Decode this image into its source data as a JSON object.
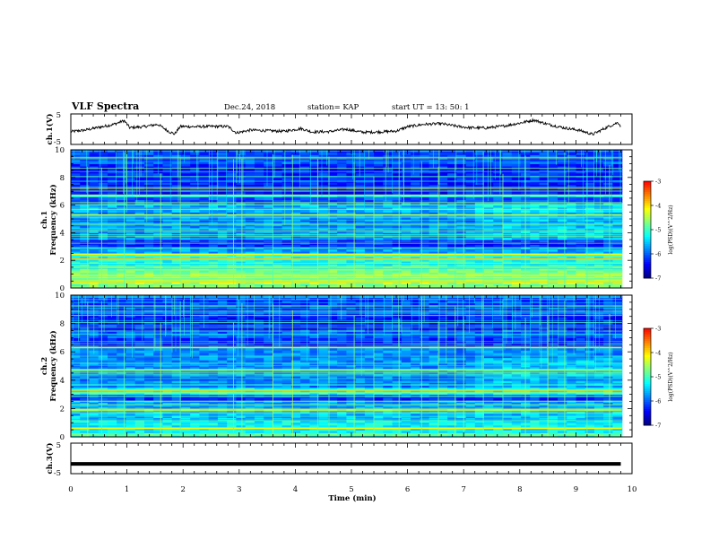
{
  "header": {
    "title": "VLF Spectra",
    "date": "Dec.24, 2018",
    "station": "station= KAP",
    "start": "start  UT =   13: 50: 1"
  },
  "colormap": [
    "#00007f",
    "#0000ff",
    "#0080ff",
    "#00ffff",
    "#80ff80",
    "#ffff00",
    "#ff8000",
    "#ff0000",
    "#ffffff"
  ],
  "chart_data": [
    {
      "type": "line",
      "panel": "ch1-waveform",
      "ylabel": "ch.1(V)",
      "ylim": [
        -5,
        5
      ],
      "yticks": [
        "5",
        "-5"
      ],
      "xlim": [
        0,
        10
      ],
      "x": [
        0,
        0.25,
        0.5,
        0.75,
        0.95,
        1.05,
        1.3,
        1.55,
        1.75,
        1.85,
        1.95,
        2.2,
        2.5,
        2.8,
        2.95,
        3.2,
        3.5,
        3.8,
        4.1,
        4.3,
        4.6,
        4.9,
        5.2,
        5.5,
        5.8,
        6.0,
        6.3,
        6.6,
        6.9,
        7.1,
        7.4,
        7.7,
        8.0,
        8.25,
        8.5,
        8.8,
        9.05,
        9.3,
        9.55,
        9.75,
        9.8
      ],
      "y": [
        -0.8,
        -0.3,
        0.6,
        1.5,
        2.8,
        0.5,
        0.8,
        1.6,
        -0.8,
        -1.6,
        0.9,
        0.8,
        0.9,
        0.9,
        -1.2,
        -0.3,
        -0.5,
        -0.7,
        0.2,
        -0.9,
        -0.8,
        0.0,
        -1.0,
        -0.9,
        -0.6,
        0.8,
        1.6,
        1.8,
        0.9,
        0.5,
        0.4,
        1.0,
        2.0,
        3.0,
        1.6,
        0.4,
        -0.3,
        -1.7,
        0.6,
        2.2,
        1.0
      ]
    },
    {
      "type": "heatmap",
      "panel": "ch1-spectrogram",
      "ylabel": "ch.1\nFrequency  (kHz)",
      "xlim": [
        0,
        10
      ],
      "ylim": [
        0,
        10
      ],
      "yticks": [
        "0",
        "2",
        "4",
        "6",
        "8",
        "10"
      ],
      "colorbar": {
        "label": "log(PSD)(V^2/Hz)",
        "range": [
          -7,
          -3
        ],
        "ticks": [
          "-3",
          "-4",
          "-5",
          "-6",
          "-7"
        ]
      },
      "bands": [
        {
          "fmin": 0.0,
          "fmax": 0.3,
          "level": 0.55
        },
        {
          "fmin": 0.3,
          "fmax": 1.0,
          "level": 0.62
        },
        {
          "fmin": 1.0,
          "fmax": 1.6,
          "level": 0.55
        },
        {
          "fmin": 1.6,
          "fmax": 2.3,
          "level": 0.45
        },
        {
          "fmin": 2.3,
          "fmax": 2.5,
          "level": 0.5
        },
        {
          "fmin": 2.5,
          "fmax": 3.0,
          "level": 0.32
        },
        {
          "fmin": 3.0,
          "fmax": 3.5,
          "level": 0.18
        },
        {
          "fmin": 3.5,
          "fmax": 4.5,
          "level": 0.3
        },
        {
          "fmin": 4.5,
          "fmax": 5.5,
          "level": 0.28
        },
        {
          "fmin": 5.5,
          "fmax": 6.2,
          "level": 0.34
        },
        {
          "fmin": 6.2,
          "fmax": 6.6,
          "level": 0.24
        },
        {
          "fmin": 6.6,
          "fmax": 6.8,
          "level": 0.42
        },
        {
          "fmin": 6.8,
          "fmax": 7.5,
          "level": 0.16
        },
        {
          "fmin": 7.5,
          "fmax": 9.0,
          "level": 0.18
        },
        {
          "fmin": 9.0,
          "fmax": 10.0,
          "level": 0.22
        }
      ],
      "tones": [
        {
          "f": 0.45,
          "level": 0.75
        },
        {
          "f": 0.9,
          "level": 0.7
        },
        {
          "f": 2.1,
          "level": 0.78
        },
        {
          "f": 2.45,
          "level": 0.72
        },
        {
          "f": 5.3,
          "level": 0.62
        },
        {
          "f": 6.7,
          "level": 0.6
        }
      ],
      "spikes": [
        0.3,
        0.55,
        0.95,
        1.6,
        1.95,
        2.9,
        3.05,
        3.6,
        3.95,
        4.4,
        4.6,
        5.05,
        5.4,
        5.85,
        6.25,
        6.55,
        6.85,
        7.0,
        7.35,
        7.7,
        8.1,
        8.5,
        8.8,
        9.2,
        9.6
      ]
    },
    {
      "type": "heatmap",
      "panel": "ch2-spectrogram",
      "ylabel": "ch.2\nFrequency  (kHz)",
      "xlim": [
        0,
        10
      ],
      "ylim": [
        0,
        10
      ],
      "yticks": [
        "0",
        "2",
        "4",
        "6",
        "8",
        "10"
      ],
      "colorbar": {
        "label": "log(PSD)(V^2/Hz)",
        "range": [
          -7,
          -3
        ],
        "ticks": [
          "-3",
          "-4",
          "-5",
          "-6",
          "-7"
        ]
      },
      "bands": [
        {
          "fmin": 0.0,
          "fmax": 0.3,
          "level": 0.5
        },
        {
          "fmin": 0.3,
          "fmax": 1.2,
          "level": 0.42
        },
        {
          "fmin": 1.2,
          "fmax": 2.0,
          "level": 0.36
        },
        {
          "fmin": 2.0,
          "fmax": 2.6,
          "level": 0.32
        },
        {
          "fmin": 2.6,
          "fmax": 3.0,
          "level": 0.2
        },
        {
          "fmin": 3.0,
          "fmax": 3.5,
          "level": 0.45
        },
        {
          "fmin": 3.5,
          "fmax": 4.3,
          "level": 0.28
        },
        {
          "fmin": 4.3,
          "fmax": 5.6,
          "level": 0.3
        },
        {
          "fmin": 5.6,
          "fmax": 6.3,
          "level": 0.3
        },
        {
          "fmin": 6.3,
          "fmax": 7.0,
          "level": 0.2
        },
        {
          "fmin": 7.0,
          "fmax": 7.6,
          "level": 0.24
        },
        {
          "fmin": 7.6,
          "fmax": 9.0,
          "level": 0.17
        },
        {
          "fmin": 9.0,
          "fmax": 10.0,
          "level": 0.22
        }
      ],
      "tones": [
        {
          "f": 0.6,
          "level": 0.72
        },
        {
          "f": 1.9,
          "level": 0.68
        },
        {
          "f": 3.3,
          "level": 0.76
        },
        {
          "f": 4.7,
          "level": 0.6
        },
        {
          "f": 6.3,
          "level": 0.62
        }
      ],
      "spikes": [
        0.3,
        0.55,
        0.95,
        1.6,
        1.95,
        2.9,
        3.05,
        3.6,
        3.95,
        4.4,
        4.6,
        5.05,
        5.4,
        5.85,
        6.25,
        6.55,
        6.85,
        7.0,
        7.35,
        7.7,
        8.1,
        8.5,
        8.8,
        9.2,
        9.6
      ]
    },
    {
      "type": "line",
      "panel": "ch3-waveform",
      "ylabel": "ch.3(V)",
      "ylim": [
        -5,
        5
      ],
      "yticks": [
        "5",
        "-5"
      ],
      "xlim": [
        0,
        10
      ],
      "xlabel": "Time  (min)",
      "xticks": [
        "0",
        "1",
        "2",
        "3",
        "4",
        "5",
        "6",
        "7",
        "8",
        "9",
        "10"
      ],
      "x": [
        0,
        9.8
      ],
      "y": [
        -1.8,
        -1.8
      ]
    }
  ]
}
